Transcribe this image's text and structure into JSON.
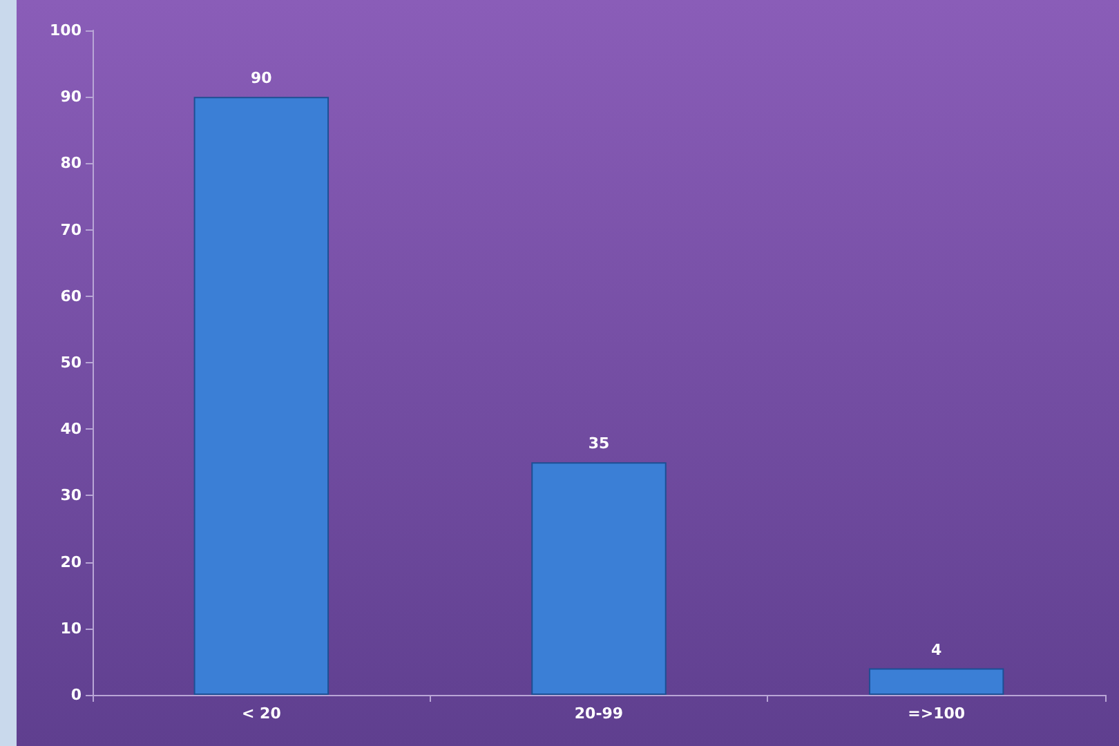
{
  "chart_data": {
    "type": "bar",
    "categories": [
      "< 20",
      "20-99",
      "=>100"
    ],
    "values": [
      90,
      35,
      4
    ],
    "color": "#3b7fd6",
    "ylim": [
      0,
      100
    ],
    "yticks": [
      0,
      10,
      20,
      30,
      40,
      50,
      60,
      70,
      80,
      90,
      100
    ],
    "grid": false,
    "data_labels": true
  }
}
